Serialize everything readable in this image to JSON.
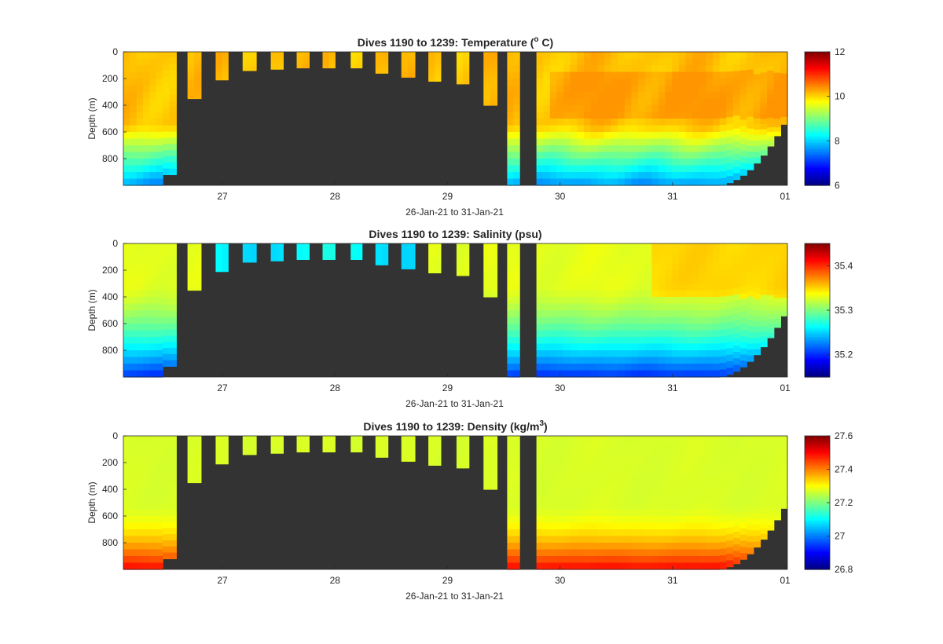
{
  "chart_data": [
    {
      "type": "heatmap",
      "title_prefix": "Dives 1190 to 1239: Temperature (",
      "title_sup": "o",
      "title_suffix": " C)",
      "xlabel": "26-Jan-21 to 31-Jan-21",
      "ylabel": "Depth (m)",
      "x_ticks": [
        "27",
        "28",
        "29",
        "30",
        "31",
        "01"
      ],
      "x_tick_values": [
        27,
        28,
        29,
        30,
        31,
        32
      ],
      "xlim": [
        26.12,
        32.02
      ],
      "y_ticks": [
        "0",
        "200",
        "400",
        "600",
        "800"
      ],
      "y_tick_values": [
        0,
        200,
        400,
        600,
        800
      ],
      "ylim": [
        0,
        1000
      ],
      "colorbar_ticks": [
        "6",
        "8",
        "10",
        "12"
      ],
      "colorbar_tick_values": [
        6,
        8,
        10,
        12
      ],
      "clim": [
        6,
        12
      ],
      "colormap": "jet",
      "field": "temperature",
      "surface_value": 10.0,
      "deep_value": 7.5,
      "colors": {
        "missing": "#333333"
      }
    },
    {
      "type": "heatmap",
      "title_prefix": "Dives 1190 to 1239: Salinity (psu)",
      "title_sup": "",
      "title_suffix": "",
      "xlabel": "26-Jan-21 to 31-Jan-21",
      "ylabel": "Depth (m)",
      "x_ticks": [
        "27",
        "28",
        "29",
        "30",
        "31",
        "01"
      ],
      "x_tick_values": [
        27,
        28,
        29,
        30,
        31,
        32
      ],
      "xlim": [
        26.12,
        32.02
      ],
      "y_ticks": [
        "0",
        "200",
        "400",
        "600",
        "800"
      ],
      "y_tick_values": [
        0,
        200,
        400,
        600,
        800
      ],
      "ylim": [
        0,
        1000
      ],
      "colorbar_ticks": [
        "35.2",
        "35.3",
        "35.4"
      ],
      "colorbar_tick_values": [
        35.2,
        35.3,
        35.4
      ],
      "clim": [
        35.15,
        35.45
      ],
      "colormap": "jet",
      "field": "salinity",
      "surface_value": 35.33,
      "deep_value": 35.2,
      "colors": {
        "missing": "#333333"
      }
    },
    {
      "type": "heatmap",
      "title_prefix": "Dives 1190 to 1239: Density (kg/m",
      "title_sup": "3",
      "title_suffix": ")",
      "xlabel": "26-Jan-21 to 31-Jan-21",
      "ylabel": "Depth (m)",
      "x_ticks": [
        "27",
        "28",
        "29",
        "30",
        "31",
        "01"
      ],
      "x_tick_values": [
        27,
        28,
        29,
        30,
        31,
        32
      ],
      "xlim": [
        26.12,
        32.02
      ],
      "y_ticks": [
        "0",
        "200",
        "400",
        "600",
        "800"
      ],
      "y_tick_values": [
        0,
        200,
        400,
        600,
        800
      ],
      "ylim": [
        0,
        1000
      ],
      "colorbar_ticks": [
        "26.8",
        "27",
        "27.2",
        "27.4",
        "27.6"
      ],
      "colorbar_tick_values": [
        26.8,
        27.0,
        27.2,
        27.4,
        27.6
      ],
      "clim": [
        26.8,
        27.6
      ],
      "colormap": "jet",
      "field": "density",
      "surface_value": 27.27,
      "deep_value": 27.5,
      "colors": {
        "missing": "#333333"
      }
    }
  ],
  "data_columns": {
    "description_of_columns": "",
    "start_times": [
      26.12,
      26.47,
      26.69,
      26.94,
      27.18,
      27.43,
      27.66,
      27.89,
      28.14,
      28.36,
      28.59,
      28.83,
      29.08,
      29.32,
      29.53,
      29.66,
      29.79
    ],
    "end_times": [
      26.47,
      26.59,
      26.81,
      27.05,
      27.3,
      27.54,
      27.77,
      28.0,
      28.24,
      28.47,
      28.71,
      28.94,
      29.19,
      29.44,
      29.64,
      29.7,
      32.02
    ],
    "max_depths": [
      1000,
      920,
      350,
      210,
      140,
      130,
      120,
      120,
      120,
      160,
      190,
      220,
      240,
      400,
      1000,
      0,
      1000
    ]
  }
}
